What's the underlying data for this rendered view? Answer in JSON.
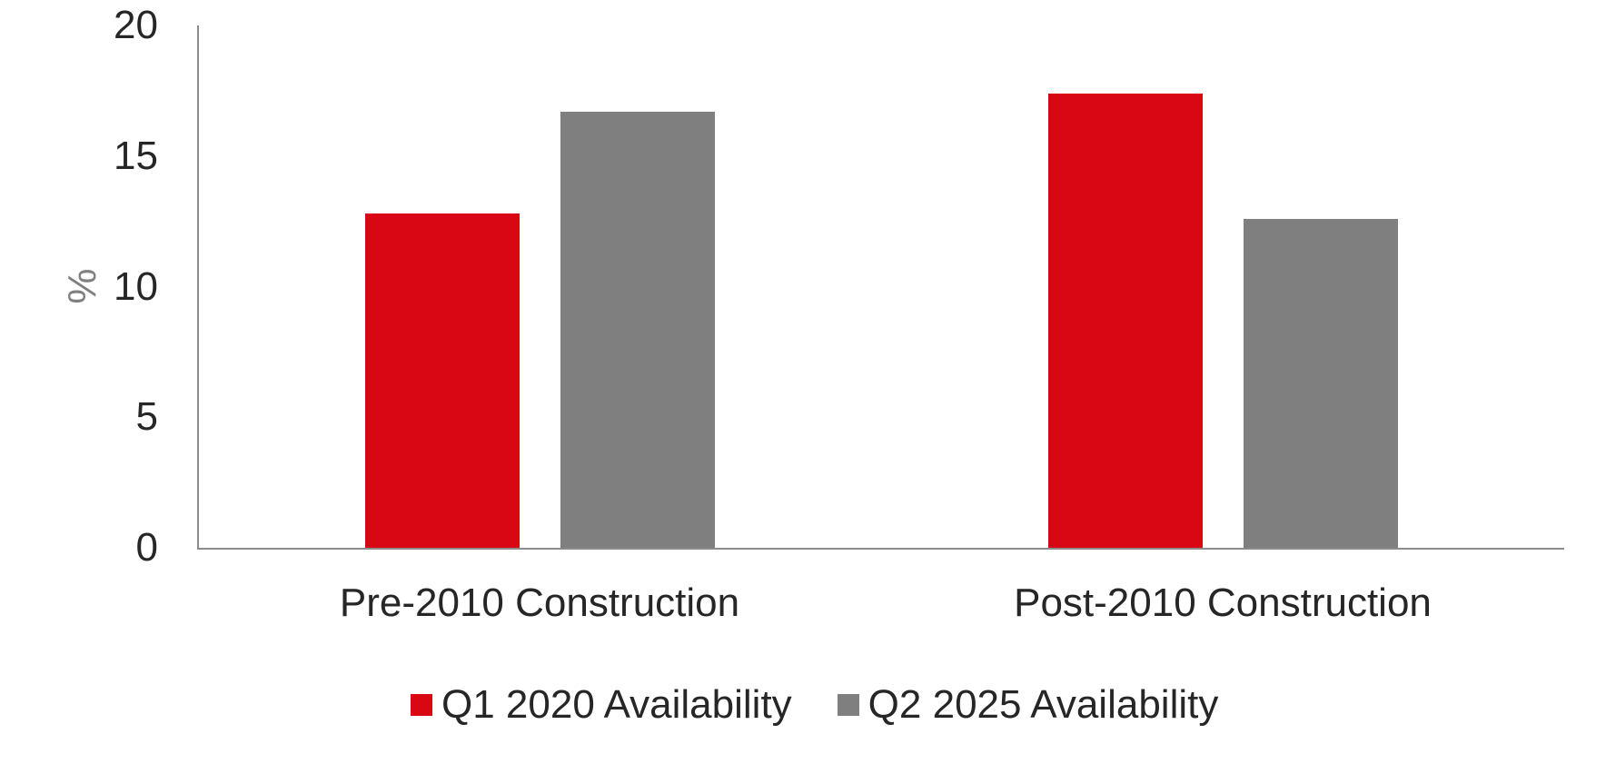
{
  "chart_data": {
    "type": "bar",
    "title": "",
    "categories": [
      "Pre-2010 Construction",
      "Post-2010 Construction"
    ],
    "series": [
      {
        "name": "Q1 2020 Availability",
        "color": "#D90614",
        "values": [
          12.8,
          17.4
        ]
      },
      {
        "name": "Q2 2025 Availability",
        "color": "#7F7F7F",
        "values": [
          16.7,
          12.6
        ]
      }
    ],
    "xlabel": "",
    "ylabel": "%",
    "ylim": [
      0,
      20
    ],
    "yticks": [
      20,
      15,
      10,
      5,
      0
    ],
    "grid": false,
    "legend_position": "bottom",
    "colors": {
      "axis": "#8C8C8C",
      "tick_text": "#262626",
      "category_text": "#262626",
      "legend_text": "#262626",
      "ylabel_text": "#7F7F7F",
      "background": "#FFFFFF"
    }
  }
}
